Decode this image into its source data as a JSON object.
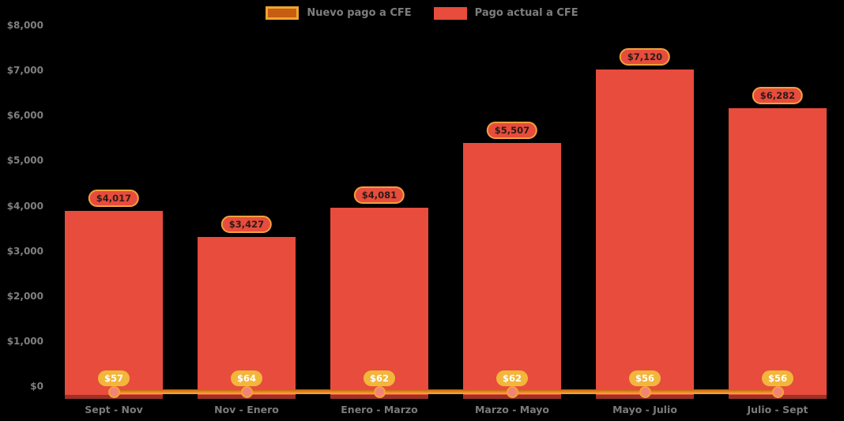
{
  "chart_data": {
    "type": "bar",
    "title": "",
    "categories": [
      "Sept - Nov",
      "Nov - Enero",
      "Enero - Marzo",
      "Marzo - Mayo",
      "Mayo - Julio",
      "Julio - Sept"
    ],
    "series": [
      {
        "name": "Nuevo pago a CFE",
        "type": "line",
        "values": [
          57,
          64,
          62,
          62,
          56,
          56
        ],
        "labels": [
          "$57",
          "$64",
          "$62",
          "$62",
          "$56",
          "$56"
        ]
      },
      {
        "name": "Pago actual a CFE",
        "type": "bar",
        "values": [
          4017,
          3427,
          4081,
          5507,
          7120,
          6282
        ],
        "labels": [
          "$4,017",
          "$3,427",
          "$4,081",
          "$5,507",
          "$7,120",
          "$6,282"
        ]
      }
    ],
    "ylabel": "",
    "xlabel": "",
    "ylim": [
      0,
      8000
    ],
    "y_ticks": [
      "$0",
      "$1,000",
      "$2,000",
      "$3,000",
      "$4,000",
      "$5,000",
      "$6,000",
      "$7,000",
      "$8,000"
    ],
    "legend_position": "top-center",
    "grid": false
  },
  "colors": {
    "background": "#000000",
    "bar": "#E74C3C",
    "bar_bottom_edge": "#9B3227",
    "line_dark": "#C65D11",
    "line_light": "#F2A430",
    "marker_fill": "#F2837B",
    "marker_ring": "#EE8F35",
    "value_pill_bg": "#E74C3C",
    "value_pill_border": "#F0A03C",
    "value_pill_text": "#2B1C15",
    "mini_pill_bg": "#F2B63B",
    "mini_pill_text": "#FFFFFF",
    "axis_text": "#7D7D7D"
  }
}
